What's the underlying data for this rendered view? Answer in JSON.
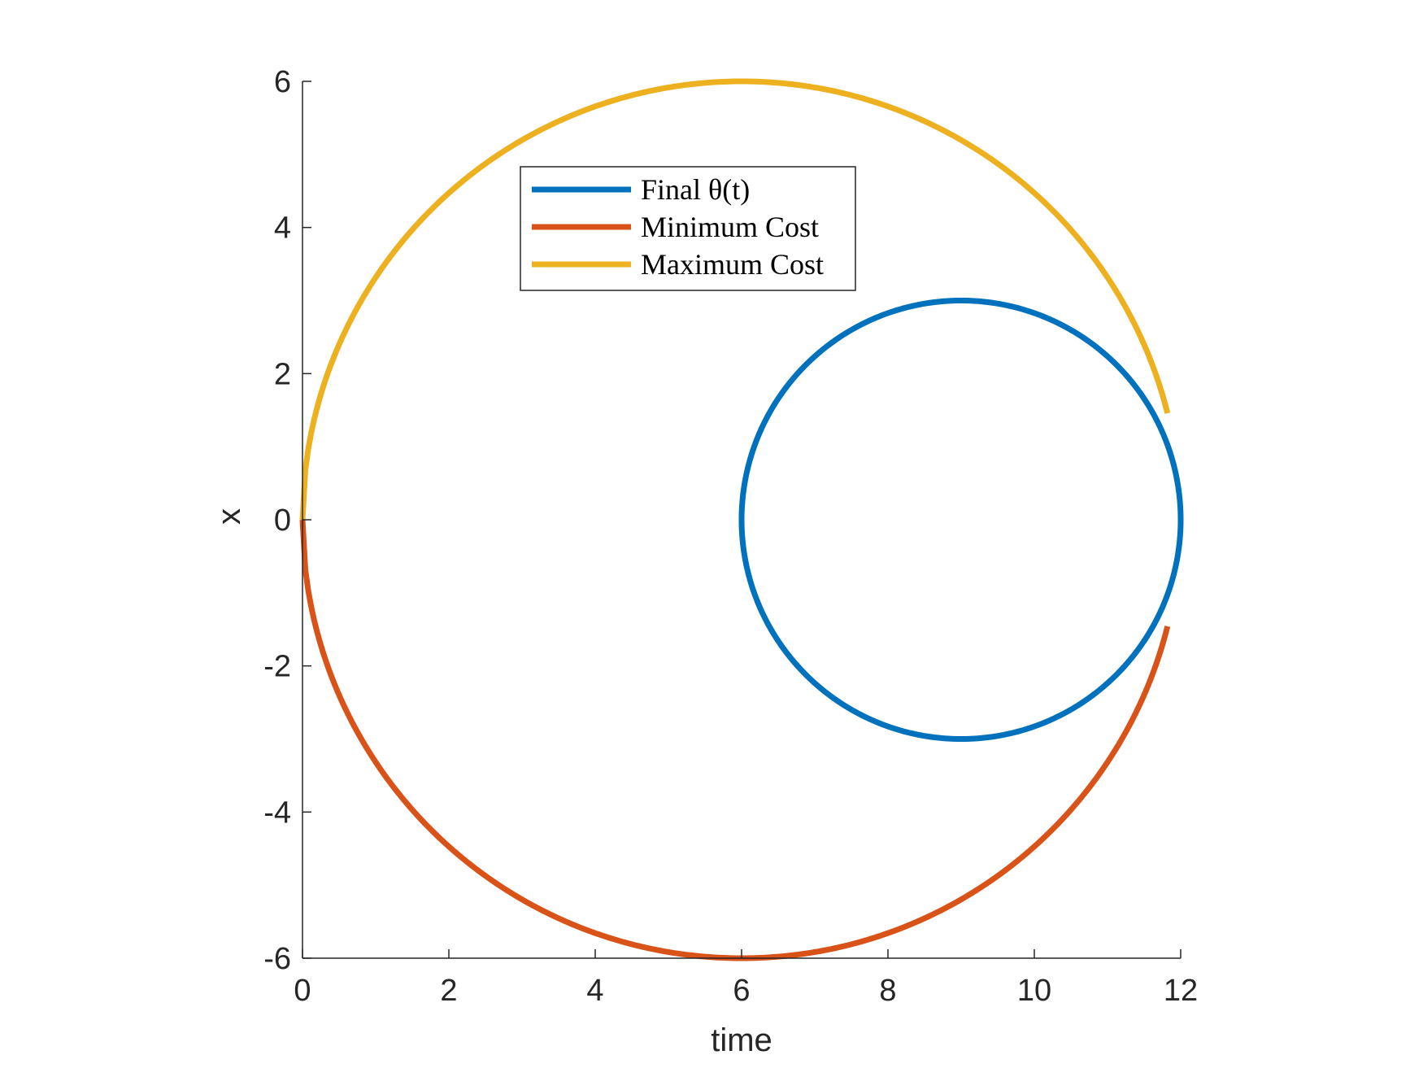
{
  "chart_data": {
    "type": "line",
    "xlabel": "time",
    "ylabel": "x",
    "xlim": [
      0,
      12
    ],
    "ylim": [
      -6,
      6
    ],
    "xticks": [
      0,
      2,
      4,
      6,
      8,
      10,
      12
    ],
    "yticks": [
      -6,
      -4,
      -2,
      0,
      2,
      4,
      6
    ],
    "grid": false,
    "legend_position": "top-center",
    "series": [
      {
        "name": "Final θ(t)",
        "color": "#0072BD",
        "shape": "circle",
        "center": [
          9,
          0
        ],
        "radius": 3,
        "points_summary": [
          [
            6,
            0
          ],
          [
            9,
            3
          ],
          [
            12,
            0
          ],
          [
            9,
            -3
          ]
        ]
      },
      {
        "name": "Minimum Cost",
        "color": "#D95319",
        "shape": "arc",
        "center": [
          6,
          0
        ],
        "radius": 6,
        "from_x": 0,
        "to_x": 11.82,
        "points_summary": [
          [
            0,
            0
          ],
          [
            6,
            -6
          ],
          [
            11.82,
            -1.04
          ]
        ]
      },
      {
        "name": "Maximum Cost",
        "color": "#EDB120",
        "shape": "arc",
        "center": [
          6,
          0
        ],
        "radius": 6,
        "from_x": 0,
        "to_x": 11.82,
        "points_summary": [
          [
            0,
            0
          ],
          [
            6,
            6
          ],
          [
            11.82,
            1.04
          ]
        ]
      }
    ]
  }
}
